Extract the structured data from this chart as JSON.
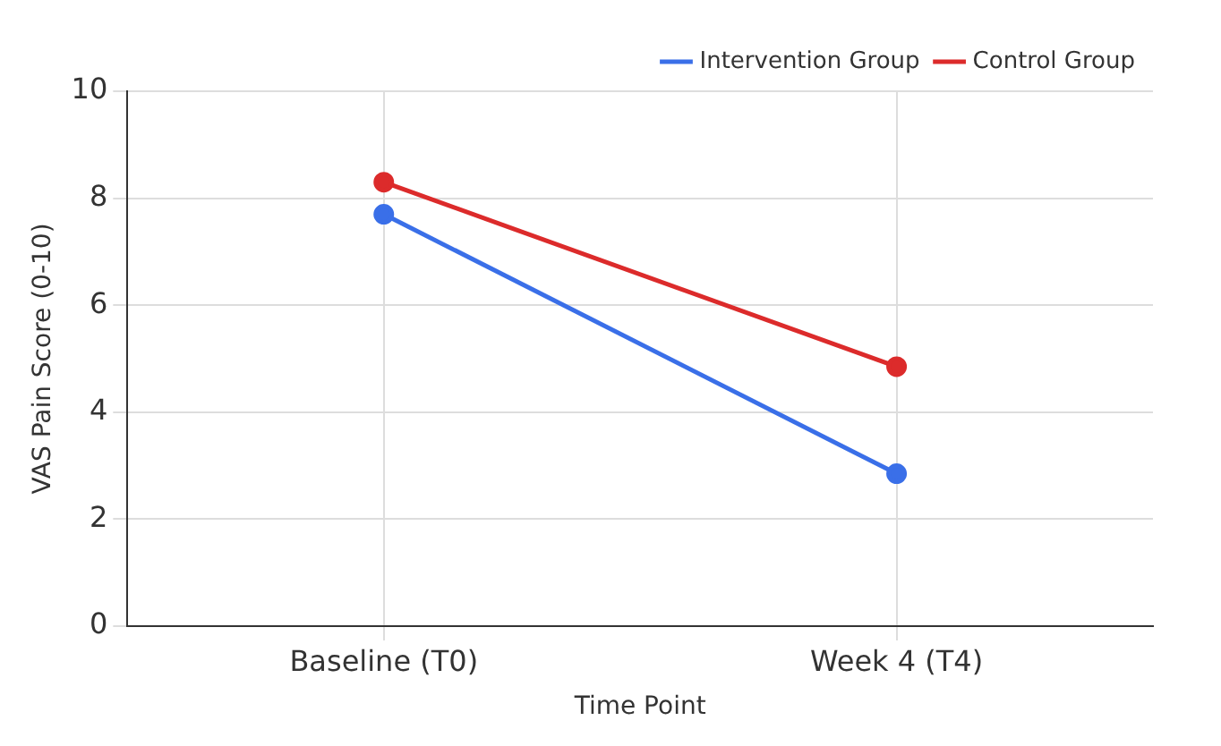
{
  "chart_data": {
    "type": "line",
    "xlabel": "Time Point",
    "ylabel": "VAS Pain Score (0-10)",
    "categories": [
      "Baseline (T0)",
      "Week 4 (T4)"
    ],
    "series": [
      {
        "name": "Intervention Group",
        "color": "#3a6fe8",
        "values": [
          7.7,
          2.85
        ]
      },
      {
        "name": "Control Group",
        "color": "#dc2b2b",
        "values": [
          8.3,
          4.85
        ]
      }
    ],
    "ylim": [
      0,
      10
    ],
    "yticks": [
      0,
      2,
      4,
      6,
      8,
      10
    ],
    "grid": true,
    "legend": "top right",
    "marker": "circle",
    "line_style": "solid"
  }
}
